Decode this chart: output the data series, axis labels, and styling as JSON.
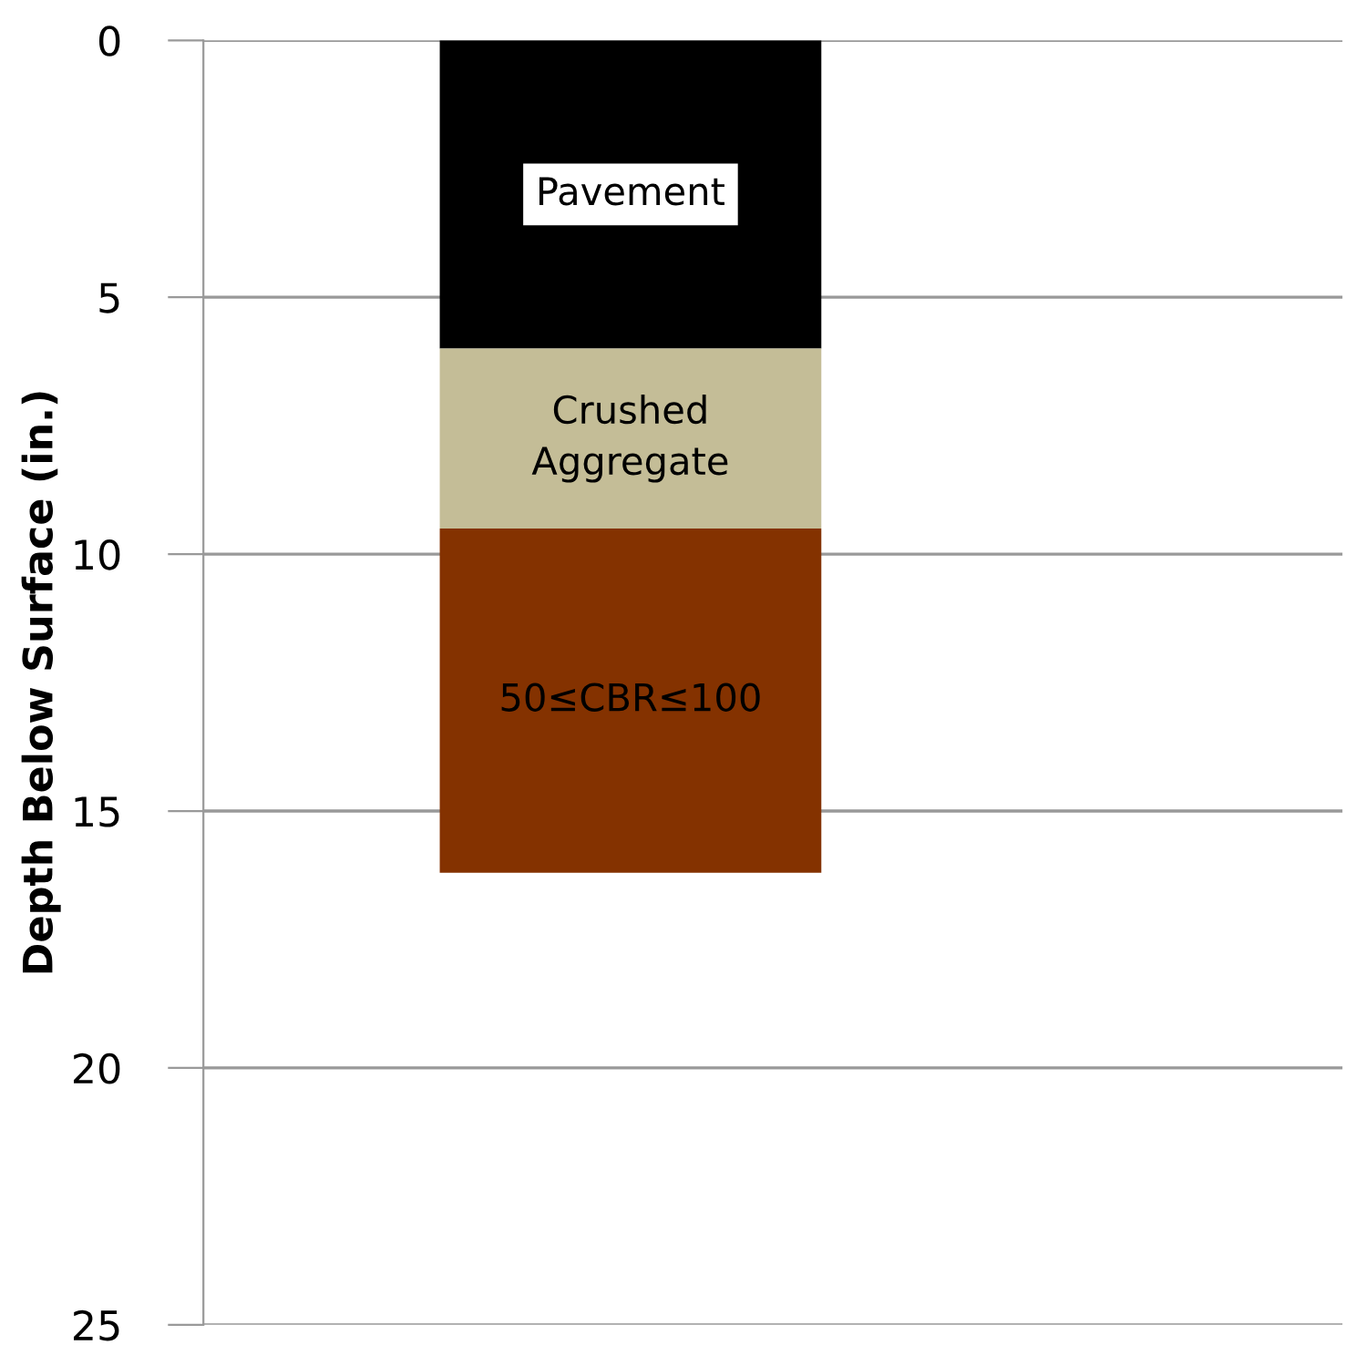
{
  "chart_data": {
    "type": "bar",
    "stacked": true,
    "categories": [
      null
    ],
    "series": [
      {
        "name": "Pavement",
        "color": "#000000",
        "values": [
          6.0
        ]
      },
      {
        "name": "Crushed\nAggregate",
        "color": "#c4bd97",
        "values": [
          3.5
        ]
      },
      {
        "name": "50≤CBR≤100",
        "color": "#843200",
        "values": [
          6.7
        ]
      }
    ],
    "ylabel": "Depth Below Surface (in.)",
    "ylim": [
      25,
      0
    ],
    "yticks": [
      0,
      5,
      10,
      15,
      20,
      25
    ],
    "grid": "y",
    "tick_labels": "y"
  }
}
